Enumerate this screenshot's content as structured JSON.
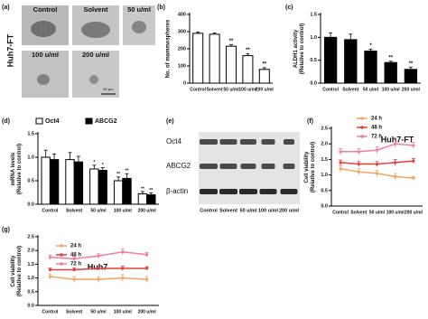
{
  "micrograph_panel": {
    "panel": "(a)",
    "row_label": "Huh7-FT",
    "labels": [
      "Control",
      "Solvent",
      "50 u/ml",
      "100 u/ml",
      "200 u/ml"
    ],
    "scale_bar": "50 μm"
  },
  "blot_panel": {
    "panel": "(e)",
    "proteins": [
      "Oct4",
      "ABCG2",
      "β-actin"
    ],
    "lanes": [
      "Control",
      "Solvent",
      "50 u/ml",
      "100 u/ml",
      "200 u/ml"
    ]
  },
  "chart_data": [
    {
      "type": "bar",
      "panel": "(b)",
      "y_label": [
        "No. of mammospheres"
      ],
      "categories": [
        "Control",
        "Solvent",
        "50 u/ml",
        "100 u/ml",
        "200 u/ml"
      ],
      "values": [
        290,
        285,
        215,
        160,
        80
      ],
      "errors": [
        8,
        8,
        10,
        12,
        10
      ],
      "significance": [
        null,
        null,
        "**",
        "**",
        "**"
      ],
      "color": "#ffffff",
      "ylim": [
        0,
        400
      ],
      "yticks": [
        0,
        100,
        200,
        300,
        400
      ]
    },
    {
      "type": "bar",
      "panel": "(c)",
      "y_label": [
        "ALDH1 activity",
        "(Relative to control)"
      ],
      "categories": [
        "Control",
        "Solvent",
        "50 u/ml",
        "100 u/ml",
        "200 u/ml"
      ],
      "values": [
        1.0,
        0.95,
        0.7,
        0.45,
        0.3
      ],
      "errors": [
        0.1,
        0.12,
        0.04,
        0.03,
        0.05
      ],
      "significance": [
        null,
        null,
        "*",
        "**",
        "**"
      ],
      "color": "#000000",
      "ylim": [
        0,
        1.5
      ],
      "yticks": [
        {
          "value": 0,
          "label": "0.0"
        },
        {
          "value": 0.5,
          "label": "0.5"
        },
        {
          "value": 1,
          "label": "1.0"
        },
        {
          "value": 1.5,
          "label": "1.5"
        }
      ]
    },
    {
      "type": "grouped_bar",
      "panel": "(d)",
      "y_label": [
        "mRNA levels",
        "(Relative to control)"
      ],
      "categories": [
        "Control",
        "Solvent",
        "50 u/ml",
        "100 u/ml",
        "200 u/ml"
      ],
      "series": [
        {
          "name": "Oct4",
          "color": "#ffffff",
          "values": [
            1.0,
            0.95,
            0.75,
            0.5,
            0.22
          ],
          "errors": [
            0.15,
            0.15,
            0.08,
            0.08,
            0.05
          ],
          "significance": [
            null,
            null,
            "*",
            "**",
            "**"
          ]
        },
        {
          "name": "ABCG2",
          "color": "#000000",
          "values": [
            0.95,
            0.9,
            0.72,
            0.55,
            0.2
          ],
          "errors": [
            0.12,
            0.12,
            0.06,
            0.1,
            0.04
          ],
          "significance": [
            null,
            null,
            "*",
            "**",
            "**"
          ]
        }
      ],
      "ylim": [
        0,
        1.5
      ],
      "yticks": [
        {
          "value": 0,
          "label": "0.0"
        },
        {
          "value": 0.5,
          "label": "0.5"
        },
        {
          "value": 1,
          "label": "1.0"
        },
        {
          "value": 1.5,
          "label": "1.5"
        }
      ]
    },
    {
      "type": "line",
      "panel": "(f)",
      "title": "Huh7-FT",
      "y_label": [
        "Cell viability",
        "(Relative to control)"
      ],
      "categories": [
        "Control",
        "Solvent",
        "50 u/ml",
        "100 u/ml",
        "200 u/ml"
      ],
      "series": [
        {
          "name": "24 h",
          "color": "#f4a460",
          "values": [
            1.2,
            1.1,
            1.05,
            0.95,
            0.9
          ],
          "errors": [
            0.1,
            0.1,
            0.1,
            0.1,
            0.05
          ]
        },
        {
          "name": "48 h",
          "color": "#e0403a",
          "values": [
            1.4,
            1.35,
            1.35,
            1.4,
            1.45
          ],
          "errors": [
            0.08,
            0.08,
            0.08,
            0.1,
            0.08
          ]
        },
        {
          "name": "72 h",
          "color": "#f07ca0",
          "values": [
            1.75,
            1.75,
            1.8,
            2.0,
            1.95
          ],
          "errors": [
            0.1,
            0.1,
            0.1,
            0.12,
            0.1
          ]
        }
      ],
      "ylim": [
        0,
        2.5
      ],
      "yticks": [
        {
          "value": 0,
          "label": "0.0"
        },
        {
          "value": 0.5,
          "label": "0.5"
        },
        {
          "value": 1,
          "label": "1.0"
        },
        {
          "value": 1.5,
          "label": "1.5"
        },
        {
          "value": 2,
          "label": "2.0"
        },
        {
          "value": 2.5,
          "label": "2.5"
        }
      ]
    },
    {
      "type": "line",
      "panel": "(g)",
      "title": "Huh7",
      "y_label": [
        "Cell viability",
        "(Relative to control)"
      ],
      "categories": [
        "Control",
        "Solvent",
        "50 u/ml",
        "100 u/ml",
        "200 u/ml"
      ],
      "series": [
        {
          "name": "24 h",
          "color": "#f4a460",
          "values": [
            1.05,
            0.95,
            0.95,
            1.0,
            0.95
          ],
          "errors": [
            0.1,
            0.1,
            0.1,
            0.12,
            0.1
          ]
        },
        {
          "name": "48 h",
          "color": "#e0403a",
          "values": [
            1.3,
            1.3,
            1.35,
            1.35,
            1.35
          ],
          "errors": [
            0.06,
            0.06,
            0.06,
            0.08,
            0.06
          ]
        },
        {
          "name": "72 h",
          "color": "#f07ca0",
          "values": [
            1.75,
            1.7,
            1.8,
            1.95,
            1.85
          ],
          "errors": [
            0.08,
            0.08,
            0.08,
            0.1,
            0.08
          ]
        }
      ],
      "ylim": [
        0,
        2.5
      ],
      "yticks": [
        {
          "value": 0,
          "label": "0.0"
        },
        {
          "value": 0.5,
          "label": "0.5"
        },
        {
          "value": 1,
          "label": "1.0"
        },
        {
          "value": 1.5,
          "label": "1.5"
        },
        {
          "value": 2,
          "label": "2.0"
        },
        {
          "value": 2.5,
          "label": "2.5"
        }
      ]
    }
  ]
}
